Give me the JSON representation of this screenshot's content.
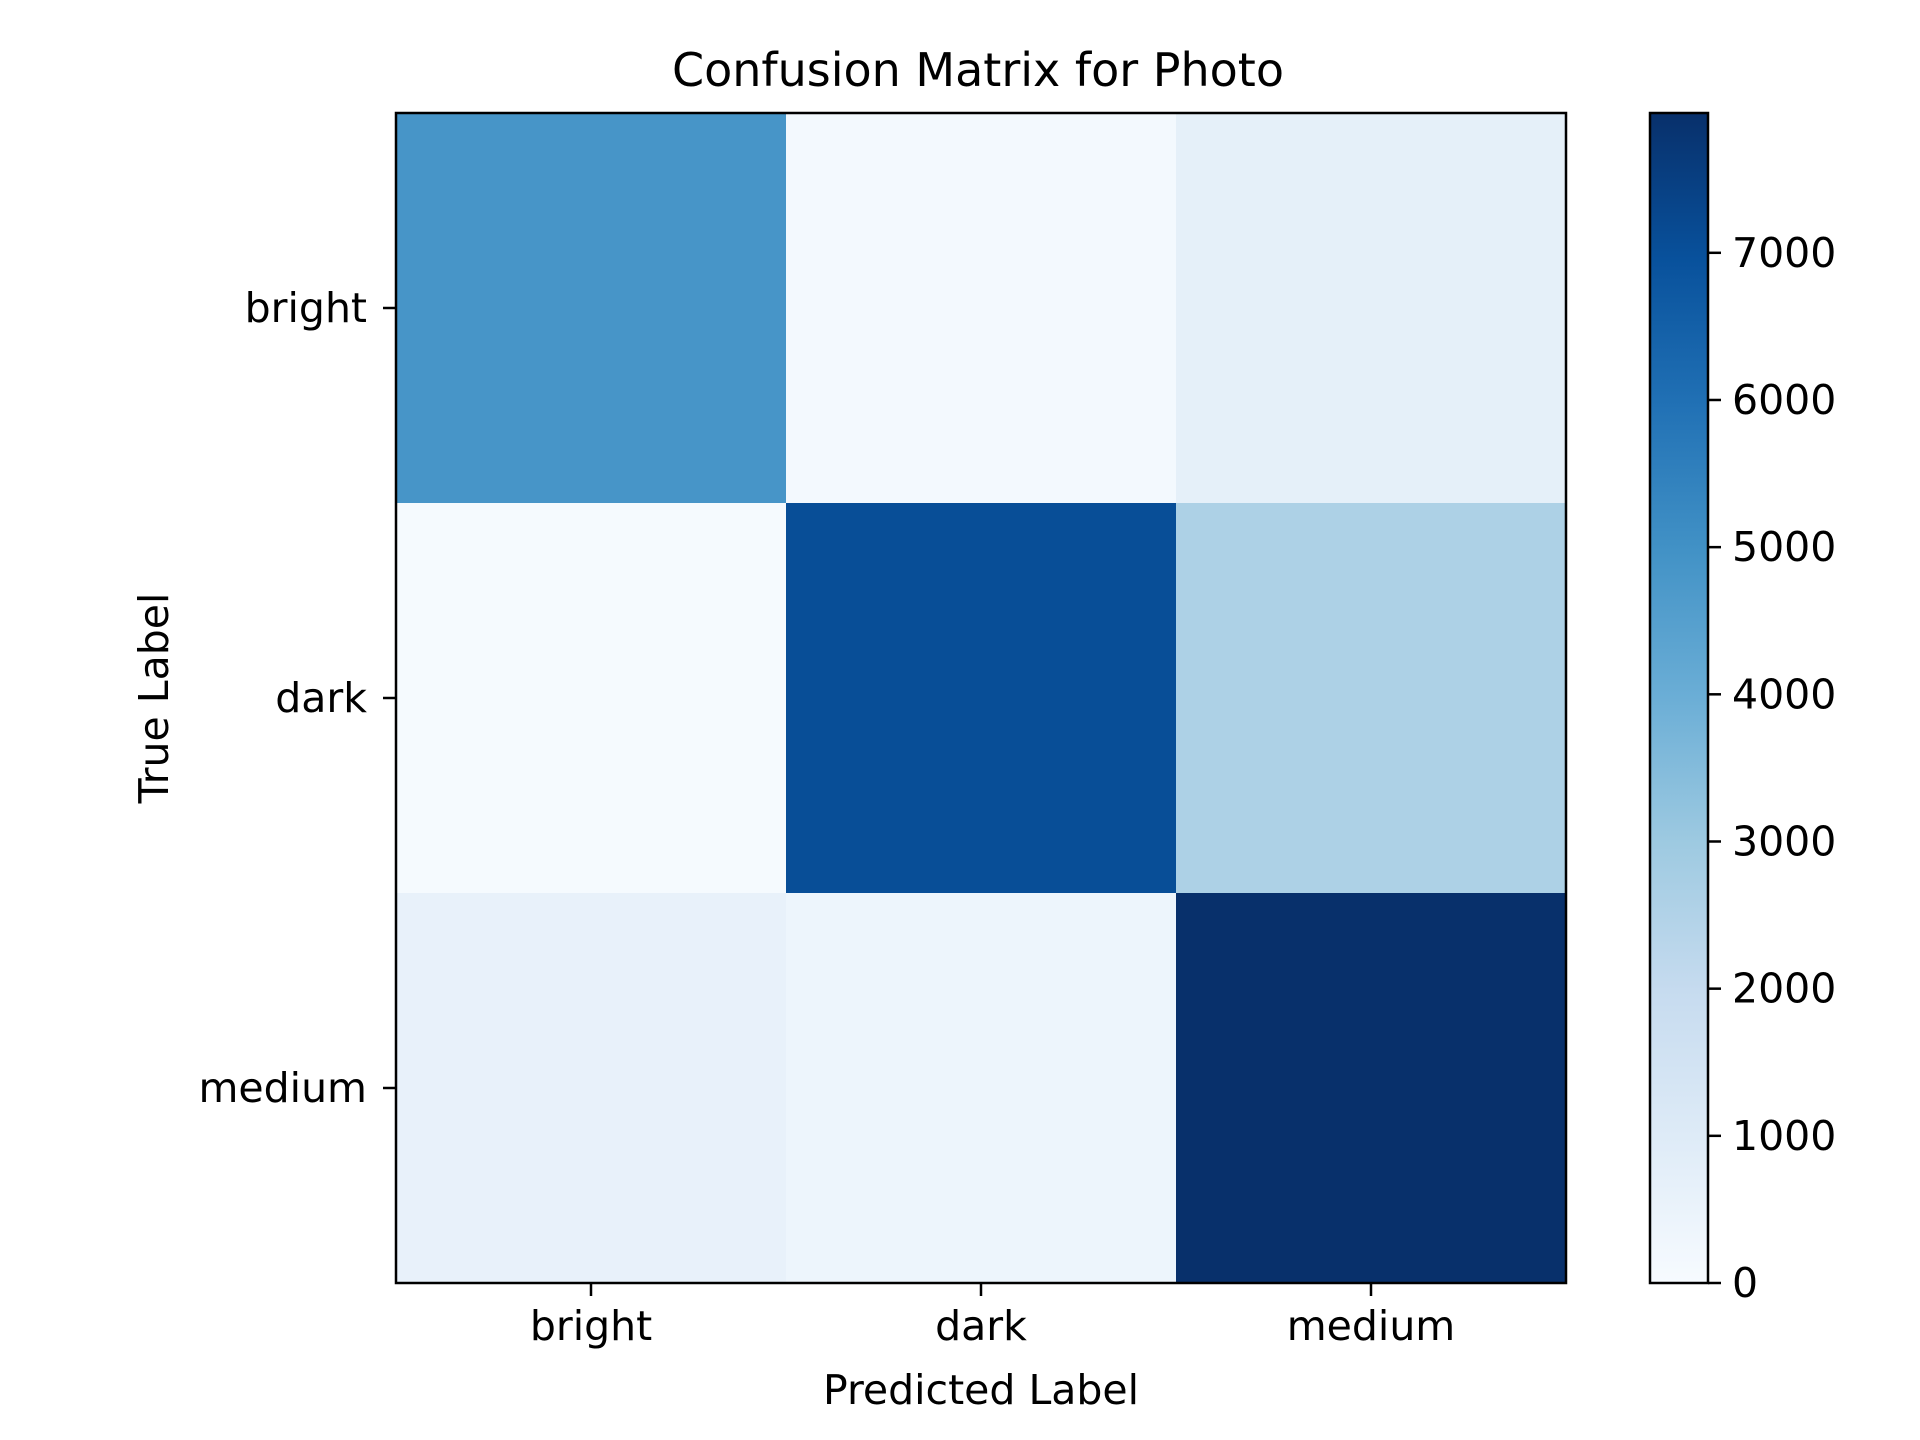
{
  "chart_data": {
    "type": "heatmap",
    "title": "Confusion Matrix for Photo",
    "xlabel": "Predicted Label",
    "ylabel": "True Label",
    "x_categories": [
      "bright",
      "dark",
      "medium"
    ],
    "y_categories": [
      "bright",
      "dark",
      "medium"
    ],
    "matrix": [
      [
        4850,
        150,
        700
      ],
      [
        80,
        7050,
        2600
      ],
      [
        600,
        400,
        7950
      ]
    ],
    "colorbar": {
      "min": 0,
      "max": 7950,
      "ticks": [
        0,
        1000,
        2000,
        3000,
        4000,
        5000,
        6000,
        7000
      ],
      "colormap": "Blues"
    },
    "grid": false
  }
}
